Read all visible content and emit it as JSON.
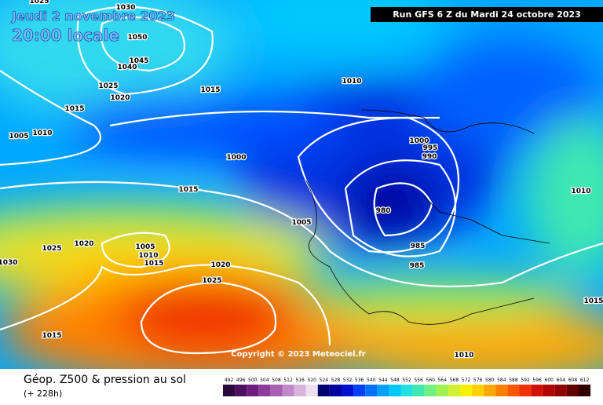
{
  "header": {
    "date": "Jeudi 2 novembre 2023",
    "time": "20:00 locale",
    "run": "Run GFS 6 Z du Mardi 24 octobre 2023"
  },
  "copyright": "Copyright © 2023 Meteociel.fr",
  "footer": {
    "title": "Géop. Z500 & pression au sol",
    "lead": "(+ 228h)"
  },
  "isobars": [
    1030,
    1025,
    1050,
    1045,
    1040,
    1025,
    1020,
    1015,
    1015,
    1010,
    1005,
    1010,
    1000,
    1015,
    1000,
    995,
    990,
    1010,
    980,
    1005,
    1025,
    1020,
    1005,
    1010,
    1015,
    1030,
    985,
    985,
    1020,
    1025,
    1015,
    1015,
    1010
  ],
  "scale": {
    "values": [
      492,
      496,
      500,
      504,
      508,
      512,
      516,
      520,
      524,
      528,
      532,
      536,
      540,
      544,
      548,
      552,
      556,
      560,
      564,
      568,
      572,
      576,
      580,
      584,
      588,
      592,
      596,
      600,
      604,
      608,
      612
    ],
    "colors": [
      "#2a0a3a",
      "#4b1060",
      "#6e1e7e",
      "#8e3a9a",
      "#a860b2",
      "#c08ac8",
      "#d8b4dc",
      "#ece0ee",
      "#000070",
      "#0000a0",
      "#0010d0",
      "#0040ff",
      "#0070ff",
      "#00a0ff",
      "#00c8ff",
      "#20e0e0",
      "#40e8b0",
      "#70f080",
      "#a0f050",
      "#d0f030",
      "#f8f000",
      "#ffd000",
      "#ffa800",
      "#ff8000",
      "#ff5800",
      "#f03000",
      "#d01000",
      "#b00000",
      "#900000",
      "#600000",
      "#300000"
    ]
  }
}
